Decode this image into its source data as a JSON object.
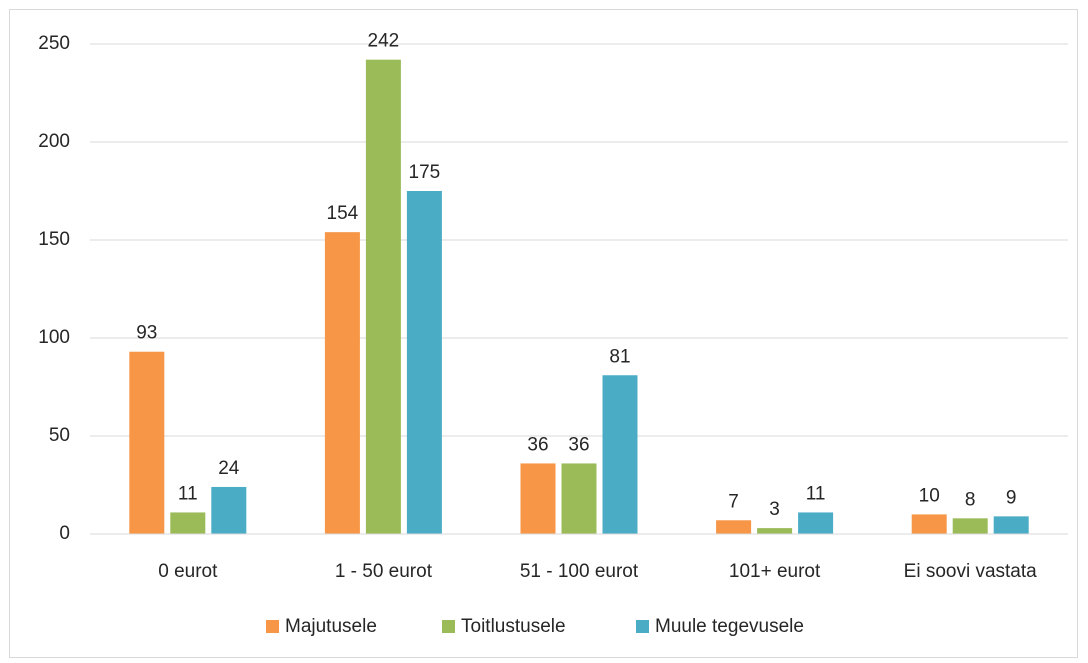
{
  "chart_data": {
    "type": "bar",
    "categories": [
      "0 eurot",
      "1 - 50 eurot",
      "51 - 100 eurot",
      "101+ eurot",
      "Ei soovi vastata"
    ],
    "series": [
      {
        "name": "Majutusele",
        "color": "#f79646",
        "values": [
          93,
          154,
          36,
          7,
          10
        ]
      },
      {
        "name": "Toitlustusele",
        "color": "#9bbb59",
        "values": [
          11,
          242,
          36,
          3,
          8
        ]
      },
      {
        "name": "Muule tegevusele",
        "color": "#4bacc6",
        "values": [
          24,
          175,
          81,
          11,
          9
        ]
      }
    ],
    "ylim": [
      0,
      250
    ],
    "yticks": [
      0,
      50,
      100,
      150,
      200,
      250
    ],
    "grid": true,
    "legend": "bottom",
    "data_labels": true
  }
}
